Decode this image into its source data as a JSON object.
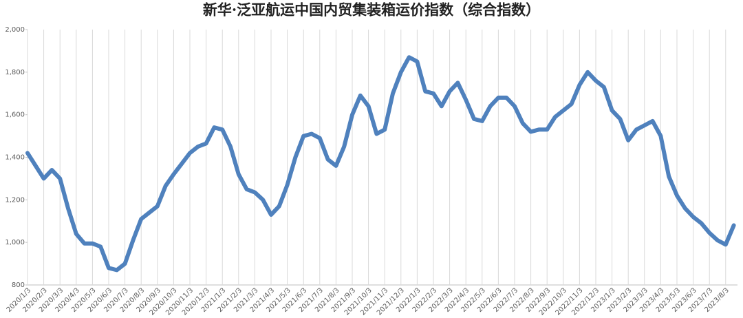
{
  "chart_data": {
    "type": "line",
    "title": "新华·泛亚航运中国内贸集装箱运价指数（综合指数）",
    "categories": [
      "2020/1/3",
      null,
      "2020/2/3",
      null,
      "2020/3/3",
      null,
      "2020/4/3",
      null,
      "2020/5/3",
      null,
      "2020/6/3",
      null,
      "2020/7/3",
      null,
      "2020/8/3",
      null,
      "2020/9/3",
      null,
      "2020/10/3",
      null,
      "2020/11/3",
      null,
      "2020/12/3",
      null,
      "2021/1/3",
      null,
      "2021/2/3",
      null,
      "2021/3/3",
      null,
      "2021/4/3",
      null,
      "2021/5/3",
      null,
      "2021/6/3",
      null,
      "2021/7/3",
      null,
      "2021/8/3",
      null,
      "2021/9/3",
      null,
      "2021/10/3",
      null,
      "2021/11/3",
      null,
      "2021/12/3",
      null,
      "2022/1/3",
      null,
      "2022/2/3",
      null,
      "2022/3/3",
      null,
      "2022/4/3",
      null,
      "2022/5/3",
      null,
      "2022/6/3",
      null,
      "2022/7/3",
      null,
      "2022/8/3",
      null,
      "2022/9/3",
      null,
      "2022/10/3",
      null,
      "2022/11/3",
      null,
      "2022/12/3",
      null,
      "2023/1/3",
      null,
      "2023/2/3",
      null,
      "2023/3/3",
      null,
      "2023/4/3",
      null,
      "2023/5/3",
      null,
      "2023/6/3",
      null,
      "2023/7/3",
      null,
      "2023/8/3",
      null
    ],
    "series": [
      {
        "name": "综合指数",
        "color": "#4f81bd",
        "values": [
          1420,
          1360,
          1300,
          1340,
          1300,
          1160,
          1040,
          995,
          995,
          980,
          880,
          870,
          900,
          1010,
          1110,
          1140,
          1170,
          1265,
          1320,
          1370,
          1420,
          1450,
          1465,
          1540,
          1530,
          1450,
          1320,
          1250,
          1235,
          1200,
          1130,
          1170,
          1270,
          1400,
          1500,
          1510,
          1490,
          1390,
          1360,
          1450,
          1600,
          1690,
          1640,
          1510,
          1530,
          1700,
          1800,
          1870,
          1850,
          1710,
          1700,
          1640,
          1710,
          1750,
          1670,
          1580,
          1570,
          1640,
          1680,
          1680,
          1640,
          1560,
          1520,
          1530,
          1530,
          1590,
          1620,
          1650,
          1740,
          1800,
          1760,
          1730,
          1620,
          1580,
          1480,
          1530,
          1550,
          1570,
          1500,
          1310,
          1220,
          1160,
          1120,
          1090,
          1045,
          1010,
          990,
          1080
        ]
      }
    ],
    "ylim": [
      800,
      2000
    ],
    "yticks": [
      800,
      {
        "value": 1000,
        "label": "1,000"
      },
      {
        "value": 1200,
        "label": "1,200"
      },
      {
        "value": 1400,
        "label": "1,400"
      },
      {
        "value": 1600,
        "label": "1,600"
      },
      {
        "value": 1800,
        "label": "1,800"
      },
      {
        "value": 2000,
        "label": "2,000"
      }
    ],
    "grid": true
  }
}
